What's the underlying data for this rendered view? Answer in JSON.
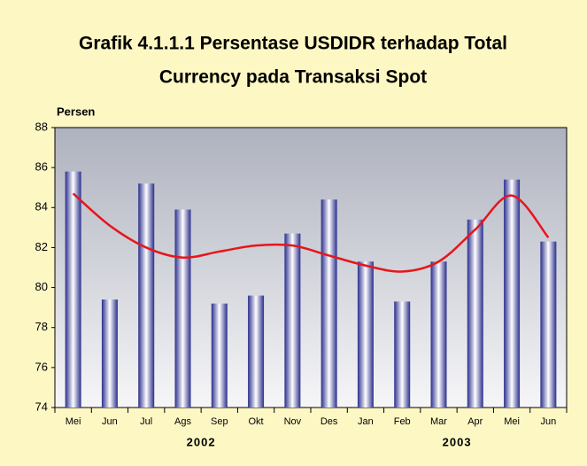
{
  "chart_data": {
    "type": "bar",
    "title": [
      "Grafik 4.1.1.1 Persentase USDIDR terhadap Total",
      "Currency pada Transaksi Spot"
    ],
    "y_label": "Persen",
    "categories": [
      "Mei",
      "Jun",
      "Jul",
      "Ags",
      "Sep",
      "Okt",
      "Nov",
      "Des",
      "Jan",
      "Feb",
      "Mar",
      "Apr",
      "Mei",
      "Jun"
    ],
    "x_group_labels": [
      "2002",
      "2003"
    ],
    "series": [
      {
        "type": "bar",
        "color": "#2a2e8c",
        "values": [
          85.8,
          79.4,
          85.2,
          83.9,
          79.2,
          79.6,
          82.7,
          84.4,
          81.3,
          79.3,
          81.3,
          83.4,
          85.4,
          82.3
        ]
      },
      {
        "type": "line",
        "color": "#e8151b",
        "values": [
          84.7,
          83.1,
          82.0,
          81.5,
          81.8,
          82.1,
          82.1,
          81.6,
          81.1,
          80.8,
          81.3,
          82.9,
          84.6,
          82.5
        ]
      }
    ],
    "ylim": [
      74,
      88
    ],
    "yticks": [
      74,
      76,
      78,
      80,
      82,
      84,
      86,
      88
    ]
  }
}
